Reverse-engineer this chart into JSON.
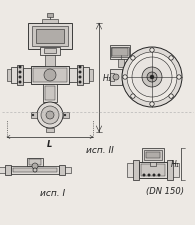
{
  "bg_color": "#ede9e4",
  "lc": "#4a4a4a",
  "dc": "#222222",
  "label_L": "L",
  "label_H1": "H₁",
  "label_isp1": "исп. I",
  "label_isp2": "исп. II",
  "label_DN": "(DN 150)",
  "fig_width": 1.95,
  "fig_height": 2.26,
  "dpi": 100
}
